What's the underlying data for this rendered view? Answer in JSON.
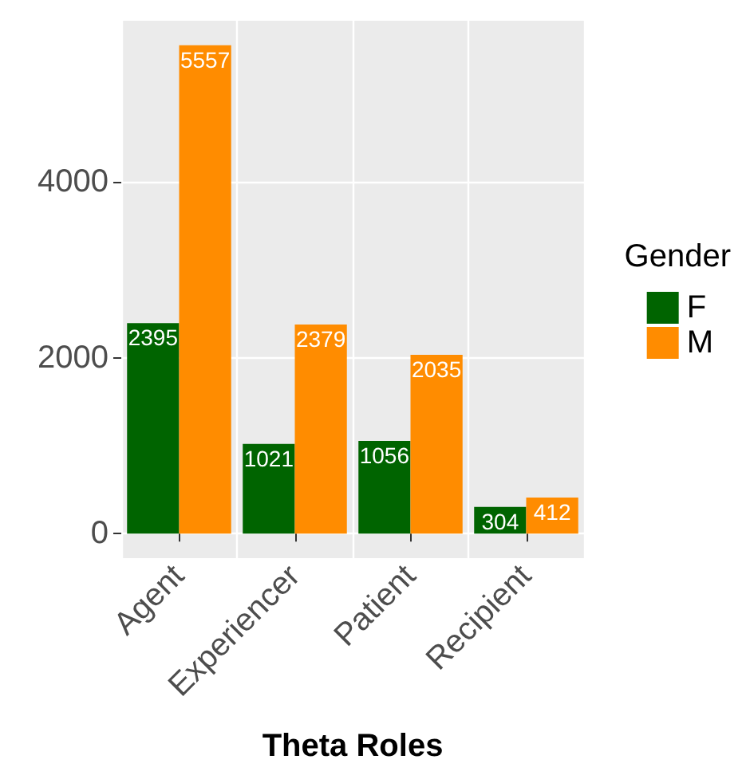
{
  "chart_data": {
    "type": "bar",
    "xlabel": "Theta Roles",
    "legend_title": "Gender",
    "categories": [
      "Agent",
      "Experiencer",
      "Patient",
      "Recipient"
    ],
    "series": [
      {
        "name": "F",
        "color": "#006400",
        "values": [
          2395,
          1021,
          1056,
          304
        ]
      },
      {
        "name": "M",
        "color": "#ff8c00",
        "values": [
          5557,
          2379,
          2035,
          412
        ]
      }
    ],
    "ylim": [
      -278,
      5835
    ],
    "yticks": [
      0,
      2000,
      4000
    ],
    "grid": true,
    "legend": "right",
    "data_labels": true
  }
}
